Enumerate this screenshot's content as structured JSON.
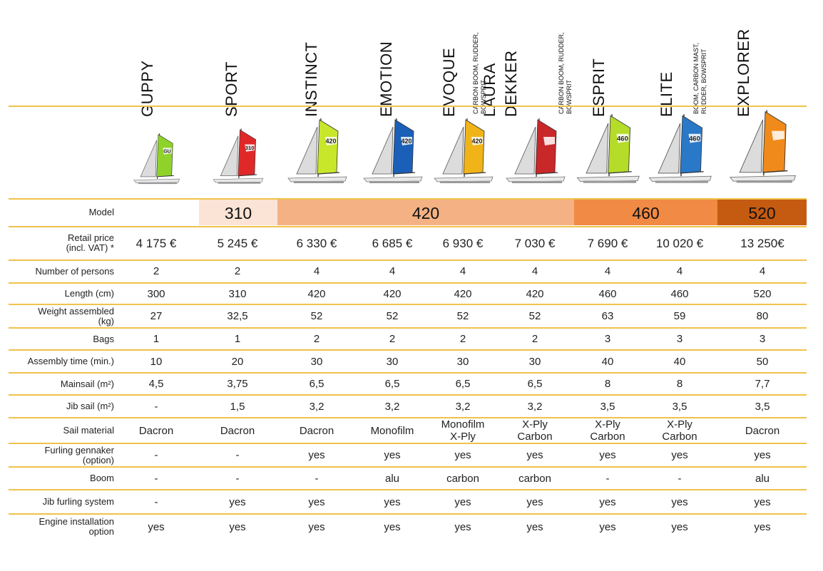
{
  "models": [
    {
      "name": "GUPPY",
      "note": "",
      "sail_color": "#8ed22a",
      "accent": "#1a3fb0"
    },
    {
      "name": "SPORT",
      "note": "",
      "sail_color": "#e02828",
      "accent": "#333333"
    },
    {
      "name": "INSTINCT",
      "note": "",
      "sail_color": "#c8e62a",
      "accent": "#3a3a3a"
    },
    {
      "name": "EMOTION",
      "note": "",
      "sail_color": "#1a5fb8",
      "accent": "#d8d8d8"
    },
    {
      "name": "EVOQUE",
      "note": "CARBON BOOM, RUDDER, BOWSPRIT",
      "sail_color": "#f0b418",
      "accent": "#2a2a2a"
    },
    {
      "name": "LAURA\nDEKKER",
      "note": "CARBON BOOM, RUDDER, BOWSPRIT",
      "sail_color": "#c8282a",
      "accent": "#1a3f8a"
    },
    {
      "name": "ESPRIT",
      "note": "",
      "sail_color": "#b4dc28",
      "accent": "#9a9a9a"
    },
    {
      "name": "ELITE",
      "note": "BOOM, CARBON MAST, RUDDER, BOWSPRIT",
      "sail_color": "#2a78c8",
      "accent": "#3a3a3a"
    },
    {
      "name": "EXPLORER",
      "note": "",
      "sail_color": "#f08a1a",
      "accent": "#f0f0f0"
    }
  ],
  "model_row": {
    "label": "Model",
    "groups": [
      {
        "value": "310",
        "color": "#fbe4d5"
      },
      {
        "value": "420",
        "color": "#f4b183"
      },
      {
        "value": "460",
        "color": "#f08a44"
      },
      {
        "value": "520",
        "color": "#c55a11"
      }
    ]
  },
  "rows": [
    {
      "label": "Retail price\n(incl. VAT) *",
      "values": [
        "4 175 €",
        "5 245 €",
        "6 330 €",
        "6 685 €",
        "6 930 €",
        "7 030 €",
        "7 690 €",
        "10 020 €",
        "13 250€"
      ]
    },
    {
      "label": "Number of persons",
      "values": [
        "2",
        "2",
        "4",
        "4",
        "4",
        "4",
        "4",
        "4",
        "4"
      ]
    },
    {
      "label": "Length (cm)",
      "values": [
        "300",
        "310",
        "420",
        "420",
        "420",
        "420",
        "460",
        "460",
        "520"
      ]
    },
    {
      "label": "Weight assembled\n(kg)",
      "values": [
        "27",
        "32,5",
        "52",
        "52",
        "52",
        "52",
        "63",
        "59",
        "80"
      ]
    },
    {
      "label": "Bags",
      "values": [
        "1",
        "1",
        "2",
        "2",
        "2",
        "2",
        "3",
        "3",
        "3"
      ]
    },
    {
      "label": "Assembly time (min.)",
      "values": [
        "10",
        "20",
        "30",
        "30",
        "30",
        "30",
        "40",
        "40",
        "50"
      ]
    },
    {
      "label": "Mainsail (m²)",
      "values": [
        "4,5",
        "3,75",
        "6,5",
        "6,5",
        "6,5",
        "6,5",
        "8",
        "8",
        "7,7"
      ]
    },
    {
      "label": "Jib sail (m²)",
      "values": [
        "-",
        "1,5",
        "3,2",
        "3,2",
        "3,2",
        "3,2",
        "3,5",
        "3,5",
        "3,5"
      ]
    },
    {
      "label": "Sail material",
      "values": [
        "Dacron",
        "Dacron",
        "Dacron",
        "Monofilm",
        "Monofilm\nX-Ply",
        "X-Ply\nCarbon",
        "X-Ply\nCarbon",
        "X-Ply\nCarbon",
        "Dacron"
      ]
    },
    {
      "label": "Furling gennaker\n(option)",
      "values": [
        "-",
        "-",
        "yes",
        "yes",
        "yes",
        "yes",
        "yes",
        "yes",
        "yes"
      ]
    },
    {
      "label": "Boom",
      "values": [
        "-",
        "-",
        "-",
        "alu",
        "carbon",
        "carbon",
        "-",
        "-",
        "alu"
      ]
    },
    {
      "label": "Jib furling system",
      "values": [
        "-",
        "yes",
        "yes",
        "yes",
        "yes",
        "yes",
        "yes",
        "yes",
        "yes"
      ]
    },
    {
      "label": "Engine installation\noption",
      "values": [
        "yes",
        "yes",
        "yes",
        "yes",
        "yes",
        "yes",
        "yes",
        "yes",
        "yes"
      ]
    }
  ],
  "boats": [
    {
      "sail_number": "GU",
      "sail_color": "#8ed22a",
      "hull_color": "#e8e8e8"
    },
    {
      "sail_number": "310",
      "sail_color": "#e02828",
      "hull_color": "#e8e8e8"
    },
    {
      "sail_number": "420",
      "sail_color": "#c8e62a",
      "hull_color": "#e8e8e8"
    },
    {
      "sail_number": "420",
      "sail_color": "#1a5fb8",
      "hull_color": "#e8e8e8"
    },
    {
      "sail_number": "420",
      "sail_color": "#f0b418",
      "hull_color": "#e8e8e8"
    },
    {
      "sail_number": "",
      "sail_color": "#c8282a",
      "hull_color": "#e8e8e8"
    },
    {
      "sail_number": "460",
      "sail_color": "#b4dc28",
      "hull_color": "#e8e8e8"
    },
    {
      "sail_number": "460",
      "sail_color": "#2a78c8",
      "hull_color": "#e8e8e8"
    },
    {
      "sail_number": "",
      "sail_color": "#f08a1a",
      "hull_color": "#e8e8e8"
    }
  ]
}
